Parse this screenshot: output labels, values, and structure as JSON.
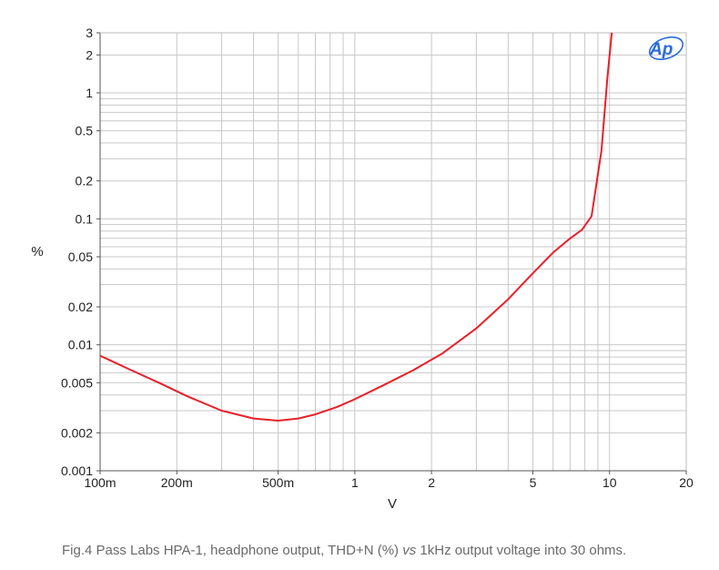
{
  "chart_data": {
    "type": "line",
    "x_scale": "log",
    "y_scale": "log",
    "xlabel": "V",
    "ylabel": "%",
    "xlim": [
      0.1,
      20
    ],
    "ylim": [
      0.001,
      3
    ],
    "grid": true,
    "x_ticks": [
      {
        "value": 0.1,
        "label": "100m"
      },
      {
        "value": 0.2,
        "label": "200m"
      },
      {
        "value": 0.5,
        "label": "500m"
      },
      {
        "value": 1,
        "label": "1"
      },
      {
        "value": 2,
        "label": "2"
      },
      {
        "value": 5,
        "label": "5"
      },
      {
        "value": 10,
        "label": "10"
      },
      {
        "value": 20,
        "label": "20"
      }
    ],
    "y_ticks": [
      {
        "value": 0.001,
        "label": "0.001"
      },
      {
        "value": 0.002,
        "label": "0.002"
      },
      {
        "value": 0.005,
        "label": "0.005"
      },
      {
        "value": 0.01,
        "label": "0.01"
      },
      {
        "value": 0.02,
        "label": "0.02"
      },
      {
        "value": 0.05,
        "label": "0.05"
      },
      {
        "value": 0.1,
        "label": "0.1"
      },
      {
        "value": 0.2,
        "label": "0.2"
      },
      {
        "value": 0.5,
        "label": "0.5"
      },
      {
        "value": 1,
        "label": "1"
      },
      {
        "value": 2,
        "label": "2"
      },
      {
        "value": 3,
        "label": "3"
      }
    ],
    "series": [
      {
        "color": "#e8202a",
        "x": [
          0.1,
          0.13,
          0.17,
          0.22,
          0.3,
          0.4,
          0.5,
          0.6,
          0.7,
          0.85,
          1,
          1.3,
          1.7,
          2.2,
          3,
          4,
          5,
          6,
          7,
          7.8,
          8.5,
          9.3,
          9.8,
          10.2
        ],
        "y": [
          0.0082,
          0.0064,
          0.005,
          0.0039,
          0.003,
          0.0026,
          0.0025,
          0.0026,
          0.0028,
          0.0032,
          0.0037,
          0.0048,
          0.0063,
          0.0085,
          0.0135,
          0.023,
          0.037,
          0.054,
          0.07,
          0.082,
          0.105,
          0.35,
          1.3,
          3.0
        ]
      }
    ]
  },
  "logo": {
    "text": "Ap",
    "color": "#2a6bd8"
  },
  "caption": {
    "prefix": "Fig.4 Pass Labs HPA-1, headphone output, THD+N (%) ",
    "italic": "vs",
    "suffix": " 1kHz output voltage into 30 ohms."
  }
}
